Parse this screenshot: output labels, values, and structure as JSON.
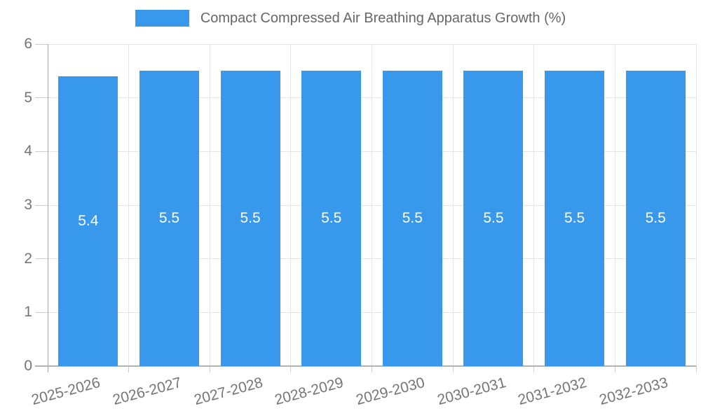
{
  "chart_data": {
    "type": "bar",
    "title": "Compact Compressed Air Breathing Apparatus Growth (%)",
    "categories": [
      "2025-2026",
      "2026-2027",
      "2027-2028",
      "2028-2029",
      "2029-2030",
      "2030-2031",
      "2031-2032",
      "2032-2033"
    ],
    "values": [
      5.4,
      5.5,
      5.5,
      5.5,
      5.5,
      5.5,
      5.5,
      5.5
    ],
    "value_labels": [
      "5.4",
      "5.5",
      "5.5",
      "5.5",
      "5.5",
      "5.5",
      "5.5",
      "5.5"
    ],
    "xlabel": "",
    "ylabel": "",
    "ylim": [
      0,
      6
    ],
    "yticks": [
      0,
      1,
      2,
      3,
      4,
      5,
      6
    ],
    "grid": true,
    "legend_position": "top-center"
  },
  "colors": {
    "bar": "#3899EC",
    "grid": "#e5e5e5",
    "y_axis_line": "#a6a6a6",
    "x_axis_line": "#b3b3b3",
    "tick": "#cccccc",
    "axis_label_text": "#757575",
    "legend_text": "#666666",
    "bar_value_text": "#ffffff",
    "background": "#ffffff"
  }
}
